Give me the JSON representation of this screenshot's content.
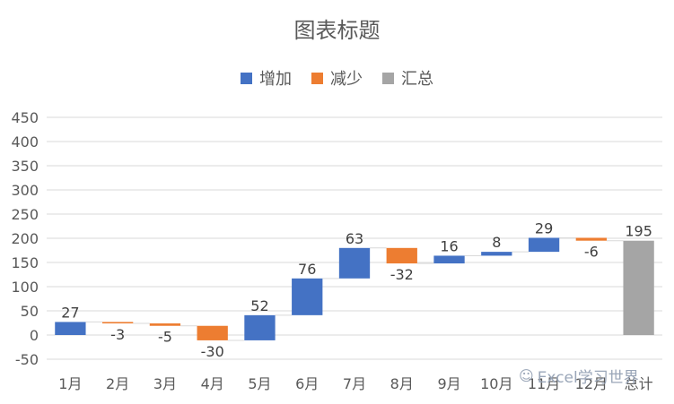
{
  "chart_data": {
    "type": "waterfall",
    "title": "图表标题",
    "legend": [
      {
        "name": "增加",
        "color": "#4472C4"
      },
      {
        "name": "减少",
        "color": "#ED7D31"
      },
      {
        "name": "汇总",
        "color": "#A5A5A5"
      }
    ],
    "legend_position": "top",
    "categories": [
      "1月",
      "2月",
      "3月",
      "4月",
      "5月",
      "6月",
      "7月",
      "8月",
      "9月",
      "10月",
      "11月",
      "12月",
      "总计"
    ],
    "values": [
      27,
      -3,
      -5,
      -30,
      52,
      76,
      63,
      -32,
      16,
      8,
      29,
      -6,
      195
    ],
    "labels": [
      "27",
      "-3",
      "-5",
      "-30",
      "52",
      "76",
      "63",
      "-32",
      "16",
      "8",
      "29",
      "-6",
      "195"
    ],
    "kinds": [
      "increase",
      "decrease",
      "decrease",
      "decrease",
      "increase",
      "increase",
      "increase",
      "decrease",
      "increase",
      "increase",
      "increase",
      "decrease",
      "total"
    ],
    "ylim": [
      -50,
      450
    ],
    "yticks": [
      -50,
      0,
      50,
      100,
      150,
      200,
      250,
      300,
      350,
      400,
      450
    ],
    "grid": true,
    "colors": {
      "increase": "#4472C4",
      "decrease": "#ED7D31",
      "total": "#A5A5A5"
    }
  },
  "watermark": {
    "text": "Excel学习世界",
    "icon": "wechat-icon"
  }
}
